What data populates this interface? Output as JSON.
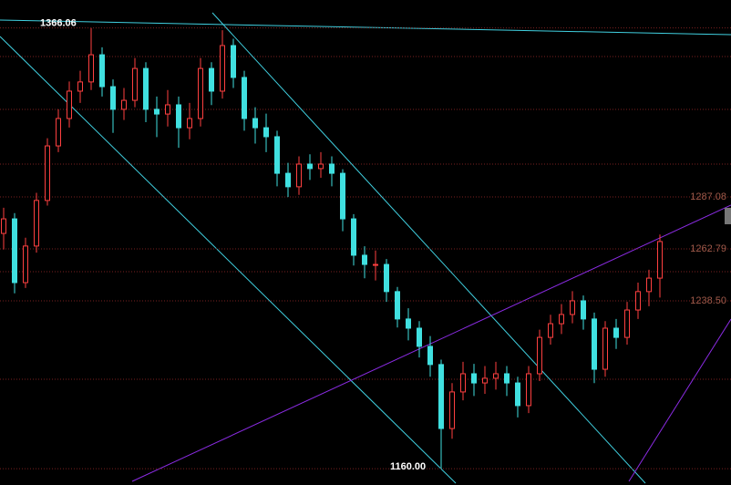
{
  "chart_data": {
    "type": "candlestick",
    "ylim": [
      1152.4,
      1379.1
    ],
    "yticks": [
      1287.08,
      1262.79,
      {
        "value": 1238.5,
        "label": "1238.50"
      }
    ],
    "grid": true,
    "up_color": "#ff4040",
    "down_color": "#40e0e0",
    "annotations": [
      {
        "value": 1366.06,
        "label": "1366.06"
      },
      {
        "value": 1160,
        "label": "1160.00"
      }
    ],
    "open": [
      1270.0,
      1276.8,
      1247.0,
      1264.1,
      1285.4,
      1310.9,
      1323.7,
      1336.5,
      1340.8,
      1353.5,
      1338.6,
      1328.0,
      1332.2,
      1347.1,
      1328.0,
      1325.8,
      1330.1,
      1319.4,
      1323.7,
      1347.1,
      1336.5,
      1357.8,
      1342.9,
      1323.7,
      1319.4,
      1315.2,
      1298.1,
      1291.8,
      1302.4,
      1300.3,
      1302.4,
      1298.1,
      1276.8,
      1259.8,
      1255.5,
      1255.5,
      1242.8,
      1230.0,
      1225.7,
      1217.2,
      1208.7,
      1178.8,
      1195.9,
      1204.4,
      1200.1,
      1202.3,
      1204.4,
      1200.1,
      1189.5,
      1204.4,
      1221.4,
      1227.8,
      1232.1,
      1238.5,
      1230.0,
      1206.5,
      1225.7,
      1221.4,
      1234.2,
      1242.8,
      1249.1
    ],
    "high": [
      1282.0,
      1279.5,
      1268.0,
      1289.0,
      1314.5,
      1328.0,
      1341.0,
      1346.0,
      1366.06,
      1357.0,
      1342.0,
      1338.0,
      1352.0,
      1350.0,
      1334.0,
      1337.0,
      1334.0,
      1331.0,
      1352.0,
      1350.0,
      1365.0,
      1361.0,
      1346.0,
      1329.0,
      1326.0,
      1318.0,
      1303.0,
      1306.0,
      1307.0,
      1308.0,
      1306.0,
      1300.0,
      1279.0,
      1264.0,
      1262.0,
      1258.0,
      1245.0,
      1235.0,
      1229.0,
      1222.0,
      1211.0,
      1200.0,
      1210.0,
      1209.0,
      1208.0,
      1210.0,
      1208.0,
      1203.0,
      1208.0,
      1225.0,
      1232.0,
      1237.0,
      1243.0,
      1241.0,
      1233.0,
      1229.0,
      1230.0,
      1238.0,
      1247.0,
      1253.0,
      1269.5
    ],
    "low": [
      1262.5,
      1242.0,
      1244.5,
      1261.0,
      1283.0,
      1308.0,
      1319.5,
      1331.0,
      1337.0,
      1334.0,
      1317.0,
      1323.0,
      1329.0,
      1322.0,
      1315.0,
      1320.0,
      1310.0,
      1314.0,
      1320.0,
      1330.0,
      1333.0,
      1338.0,
      1318.0,
      1312.0,
      1308.0,
      1292.0,
      1287.0,
      1288.0,
      1295.0,
      1296.0,
      1292.0,
      1271.0,
      1255.0,
      1249.0,
      1248.0,
      1238.0,
      1226.0,
      1220.0,
      1212.0,
      1203.0,
      1160.0,
      1174.0,
      1192.0,
      1194.0,
      1195.0,
      1197.0,
      1194.0,
      1184.0,
      1186.0,
      1201.0,
      1218.0,
      1223.0,
      1228.0,
      1225.0,
      1200.0,
      1203.0,
      1216.0,
      1218.0,
      1230.0,
      1236.0,
      1240.0
    ],
    "close": [
      1276.8,
      1247.0,
      1264.1,
      1285.4,
      1310.9,
      1323.7,
      1336.5,
      1340.8,
      1353.5,
      1338.6,
      1328.0,
      1332.2,
      1347.1,
      1328.0,
      1325.8,
      1330.1,
      1319.4,
      1323.7,
      1347.1,
      1336.5,
      1357.8,
      1342.9,
      1323.7,
      1319.4,
      1315.2,
      1298.1,
      1291.8,
      1302.4,
      1300.3,
      1302.4,
      1298.1,
      1276.8,
      1259.8,
      1255.5,
      1255.5,
      1242.8,
      1230.0,
      1225.7,
      1217.2,
      1208.7,
      1178.8,
      1195.9,
      1204.4,
      1200.1,
      1202.3,
      1204.4,
      1200.1,
      1189.5,
      1204.4,
      1221.4,
      1227.8,
      1232.1,
      1238.5,
      1230.0,
      1206.5,
      1225.7,
      1221.4,
      1234.2,
      1242.8,
      1249.1,
      1266.2
    ]
  }
}
